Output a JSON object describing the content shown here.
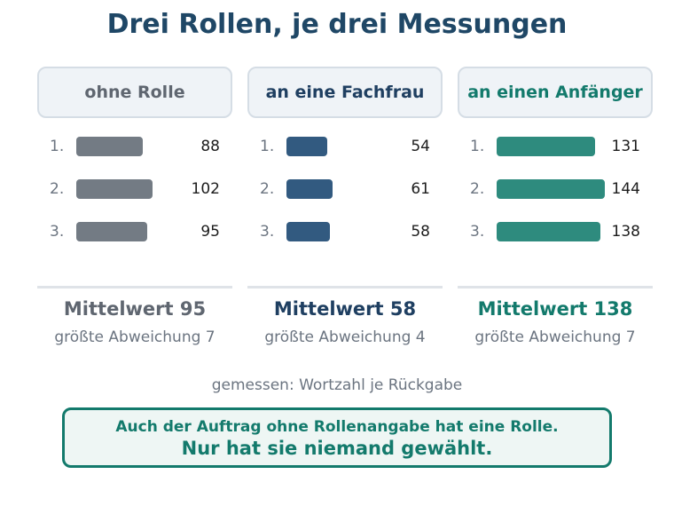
{
  "title": "Drei Rollen, je drei Messungen",
  "chart_data": {
    "type": "bar",
    "title": "Drei Rollen, je drei Messungen",
    "note": "gemessen: Wortzahl je Rückgabe",
    "bar_scale_max": 150,
    "panels": [
      {
        "label": "ohne Rolle",
        "color": "#737b84",
        "label_color": "#5f6670",
        "indices": [
          "1.",
          "2.",
          "3."
        ],
        "values": [
          88,
          102,
          95
        ],
        "mean_text": "Mittelwert 95",
        "deviation_text": "größte Abweichung 7"
      },
      {
        "label": "an eine Fachfrau",
        "color": "#325a80",
        "label_color": "#1f3f61",
        "indices": [
          "1.",
          "2.",
          "3."
        ],
        "values": [
          54,
          61,
          58
        ],
        "mean_text": "Mittelwert 58",
        "deviation_text": "größte Abweichung 4"
      },
      {
        "label": "an einen Anfänger",
        "color": "#2e8b7e",
        "label_color": "#137a6c",
        "indices": [
          "1.",
          "2.",
          "3."
        ],
        "values": [
          131,
          144,
          138
        ],
        "mean_text": "Mittelwert 138",
        "deviation_text": "größte Abweichung 7"
      }
    ]
  },
  "callout": {
    "line1": "Auch der Auftrag ohne Rollenangabe hat eine Rolle.",
    "line2": "Nur hat sie niemand gewählt."
  }
}
